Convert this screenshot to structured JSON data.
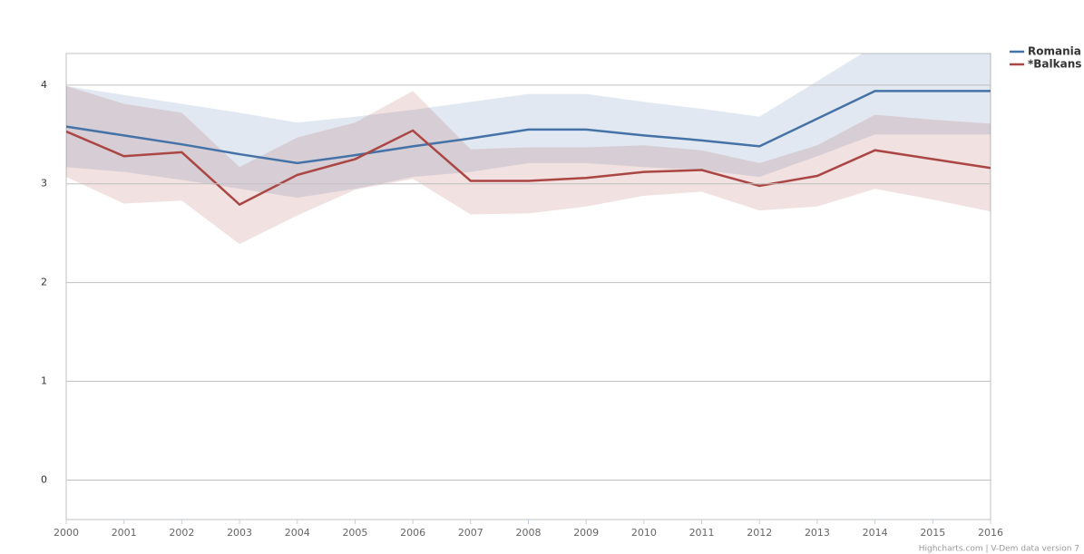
{
  "chart_data": {
    "type": "line",
    "x": [
      2000,
      2001,
      2002,
      2003,
      2004,
      2005,
      2006,
      2007,
      2008,
      2009,
      2010,
      2011,
      2012,
      2013,
      2014,
      2015,
      2016
    ],
    "xlim": [
      2000,
      2016
    ],
    "ylim": [
      -0.4,
      4.32
    ],
    "yticks": [
      0,
      1,
      2,
      3,
      4
    ],
    "grid": true,
    "legend": "top-right",
    "series": [
      {
        "name": "Romania",
        "color": "#4572a7",
        "values": [
          3.58,
          3.49,
          3.4,
          3.3,
          3.21,
          3.29,
          3.38,
          3.46,
          3.55,
          3.55,
          3.49,
          3.44,
          3.38,
          3.66,
          3.94,
          3.94,
          3.94
        ],
        "high": [
          3.99,
          3.9,
          3.81,
          3.72,
          3.62,
          3.68,
          3.75,
          3.83,
          3.91,
          3.91,
          3.83,
          3.76,
          3.68,
          4.04,
          4.4,
          4.4,
          4.4
        ],
        "low": [
          3.17,
          3.12,
          3.04,
          2.95,
          2.86,
          2.95,
          3.07,
          3.12,
          3.21,
          3.21,
          3.17,
          3.14,
          3.07,
          3.28,
          3.5,
          3.5,
          3.5
        ]
      },
      {
        "name": "*Balkans",
        "color": "#aa4643",
        "values": [
          3.53,
          3.28,
          3.32,
          2.79,
          3.09,
          3.25,
          3.54,
          3.03,
          3.03,
          3.06,
          3.12,
          3.14,
          2.98,
          3.08,
          3.34,
          3.25,
          3.16
        ],
        "high": [
          3.99,
          3.81,
          3.72,
          3.17,
          3.47,
          3.62,
          3.94,
          3.35,
          3.37,
          3.37,
          3.39,
          3.34,
          3.21,
          3.39,
          3.7,
          3.65,
          3.61
        ],
        "low": [
          3.07,
          2.8,
          2.83,
          2.39,
          2.68,
          2.94,
          3.05,
          2.69,
          2.7,
          2.77,
          2.88,
          2.92,
          2.73,
          2.77,
          2.95,
          2.84,
          2.72
        ]
      }
    ],
    "credits": "Highcharts.com | V-Dem data version 7"
  }
}
